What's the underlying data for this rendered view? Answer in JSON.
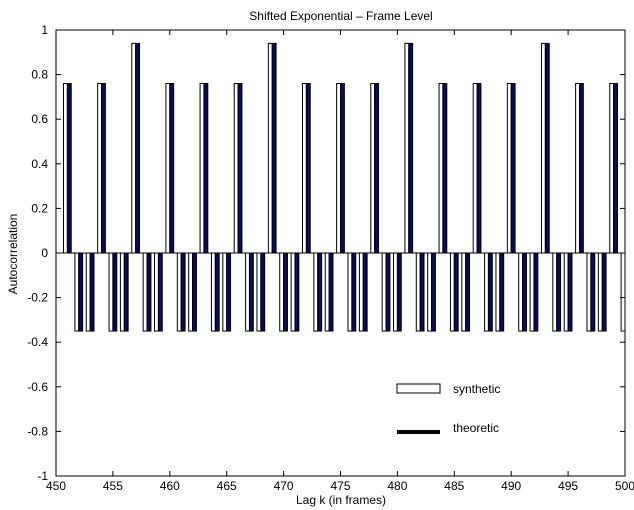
{
  "chart_data": {
    "type": "bar",
    "title": "Shifted Exponential – Frame Level",
    "xlabel": "Lag k (in frames)",
    "ylabel": "Autocorrelation",
    "xlim": [
      450,
      500
    ],
    "ylim": [
      -1,
      1
    ],
    "xticks": [
      450,
      455,
      460,
      465,
      470,
      475,
      480,
      485,
      490,
      495,
      500
    ],
    "yticks": [
      -1,
      -0.8,
      -0.6,
      -0.4,
      -0.2,
      0,
      0.2,
      0.4,
      0.6,
      0.8,
      1
    ],
    "grid": false,
    "legend_position": "lower-right",
    "colors": {
      "synthetic": "#ffffff",
      "theoretic": "#0b0b5c",
      "edge": "#000000"
    },
    "x": [
      451,
      452,
      453,
      454,
      455,
      456,
      457,
      458,
      459,
      460,
      461,
      462,
      463,
      464,
      465,
      466,
      467,
      468,
      469,
      470,
      471,
      472,
      473,
      474,
      475,
      476,
      477,
      478,
      479,
      480,
      481,
      482,
      483,
      484,
      485,
      486,
      487,
      488,
      489,
      490,
      491,
      492,
      493,
      494,
      495,
      496,
      497,
      498,
      499,
      500
    ],
    "series": [
      {
        "name": "synthetic",
        "values": [
          0.76,
          -0.35,
          -0.35,
          0.76,
          -0.35,
          -0.35,
          0.94,
          -0.35,
          -0.35,
          0.76,
          -0.35,
          -0.35,
          0.76,
          -0.35,
          -0.35,
          0.76,
          -0.35,
          -0.35,
          0.94,
          -0.35,
          -0.35,
          0.76,
          -0.35,
          -0.35,
          0.76,
          -0.35,
          -0.35,
          0.76,
          -0.35,
          -0.35,
          0.94,
          -0.35,
          -0.35,
          0.76,
          -0.35,
          -0.35,
          0.76,
          -0.35,
          -0.35,
          0.76,
          -0.35,
          -0.35,
          0.94,
          -0.35,
          -0.35,
          0.76,
          -0.35,
          -0.35,
          0.76,
          -0.35
        ]
      },
      {
        "name": "theoretic",
        "values": [
          0.76,
          -0.35,
          -0.35,
          0.76,
          -0.35,
          -0.35,
          0.94,
          -0.35,
          -0.35,
          0.76,
          -0.35,
          -0.35,
          0.76,
          -0.35,
          -0.35,
          0.76,
          -0.35,
          -0.35,
          0.94,
          -0.35,
          -0.35,
          0.76,
          -0.35,
          -0.35,
          0.76,
          -0.35,
          -0.35,
          0.76,
          -0.35,
          -0.35,
          0.94,
          -0.35,
          -0.35,
          0.76,
          -0.35,
          -0.35,
          0.76,
          -0.35,
          -0.35,
          0.76,
          -0.35,
          -0.35,
          0.94,
          -0.35,
          -0.35,
          0.76,
          -0.35,
          -0.35,
          0.76,
          -0.35
        ]
      }
    ]
  }
}
